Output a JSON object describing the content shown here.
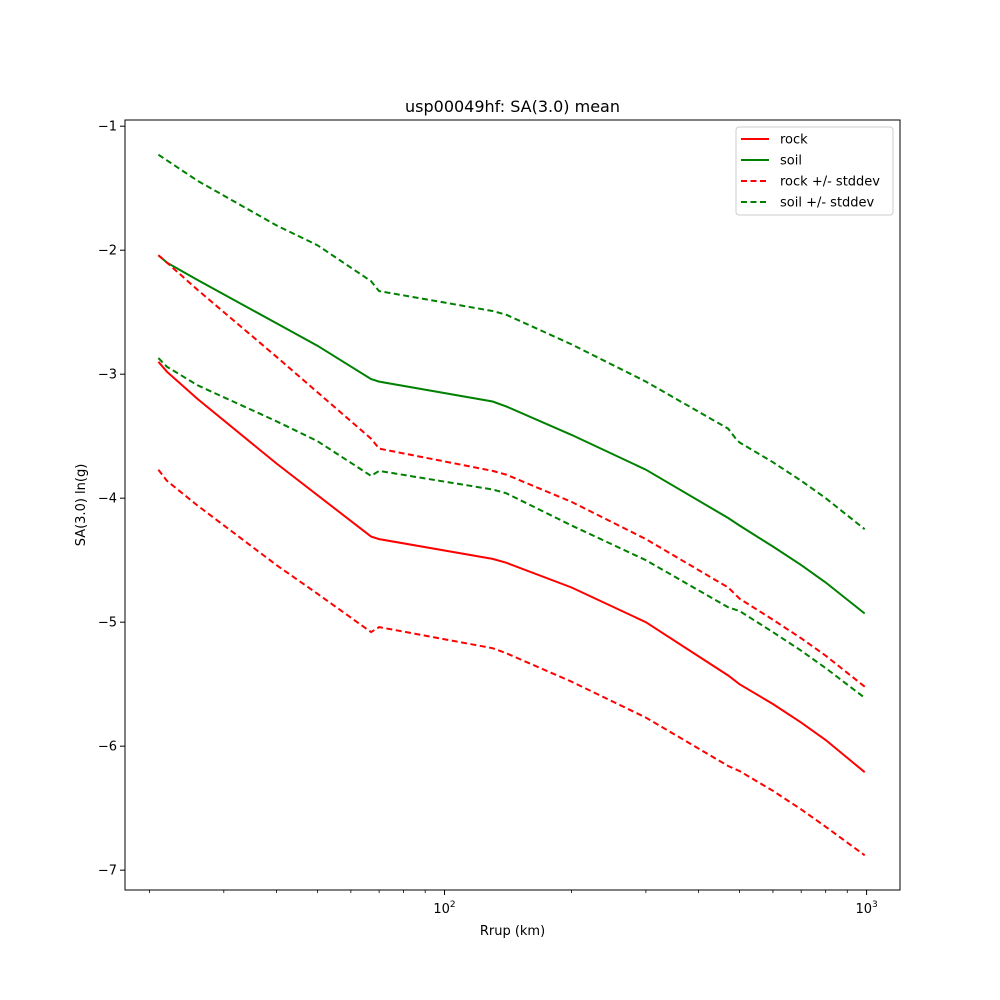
{
  "chart_data": {
    "type": "line",
    "title": "usp00049hf: SA(3.0) mean",
    "xlabel": "Rrup (km)",
    "ylabel": "SA(3.0) ln(g)",
    "xscale": "log",
    "xlim": [
      17.5,
      1200
    ],
    "ylim": [
      -7.16,
      -0.95
    ],
    "yticks": [
      -1,
      -2,
      -3,
      -4,
      -5,
      -6,
      -7
    ],
    "ytick_labels": [
      "−1",
      "−2",
      "−3",
      "−4",
      "−5",
      "−6",
      "−7"
    ],
    "xtick_major": [
      {
        "value": 100,
        "base": "10",
        "exp": "2"
      },
      {
        "value": 1000,
        "base": "10",
        "exp": "3"
      }
    ],
    "xtick_minor": [
      20,
      30,
      40,
      50,
      60,
      70,
      80,
      90,
      200,
      300,
      400,
      500,
      600,
      700,
      800,
      900
    ],
    "grid": false,
    "legend_position": "top-right",
    "series": [
      {
        "name": "rock",
        "color": "#ff0000",
        "dash": "solid",
        "x": [
          21,
          22,
          26,
          40,
          67,
          70,
          130,
          140,
          200,
          300,
          470,
          500,
          600,
          700,
          800,
          990
        ],
        "y": [
          -2.9,
          -2.98,
          -3.2,
          -3.72,
          -4.31,
          -4.33,
          -4.49,
          -4.52,
          -4.72,
          -5.0,
          -5.43,
          -5.5,
          -5.66,
          -5.81,
          -5.95,
          -6.21
        ]
      },
      {
        "name": "soil",
        "color": "#008000",
        "dash": "solid",
        "x": [
          21,
          22,
          26,
          40,
          50,
          67,
          70,
          130,
          140,
          200,
          300,
          470,
          500,
          600,
          700,
          800,
          990
        ],
        "y": [
          -2.04,
          -2.1,
          -2.24,
          -2.59,
          -2.77,
          -3.04,
          -3.06,
          -3.22,
          -3.26,
          -3.49,
          -3.77,
          -4.16,
          -4.22,
          -4.39,
          -4.54,
          -4.68,
          -4.93
        ]
      },
      {
        "name": "rock upper",
        "color": "#ff0000",
        "dash": "dashed",
        "x": [
          21,
          22,
          26,
          40,
          67,
          70,
          130,
          140,
          200,
          300,
          470,
          490,
          500,
          600,
          700,
          800,
          990
        ],
        "y": [
          -2.04,
          -2.1,
          -2.32,
          -2.86,
          -3.52,
          -3.6,
          -3.78,
          -3.81,
          -4.03,
          -4.33,
          -4.72,
          -4.78,
          -4.81,
          -4.98,
          -5.13,
          -5.27,
          -5.52
        ]
      },
      {
        "name": "rock lower",
        "color": "#ff0000",
        "dash": "dashed",
        "x": [
          21,
          22,
          26,
          40,
          50,
          67,
          70,
          130,
          140,
          200,
          300,
          470,
          500,
          600,
          700,
          800,
          990
        ],
        "y": [
          -3.77,
          -3.86,
          -4.06,
          -4.54,
          -4.77,
          -5.08,
          -5.04,
          -5.21,
          -5.25,
          -5.48,
          -5.77,
          -6.16,
          -6.2,
          -6.36,
          -6.51,
          -6.65,
          -6.88
        ]
      },
      {
        "name": "soil upper",
        "color": "#008000",
        "dash": "dashed",
        "x": [
          21,
          26,
          40,
          50,
          67,
          70,
          130,
          140,
          200,
          300,
          470,
          490,
          500,
          600,
          700,
          800,
          990
        ],
        "y": [
          -1.23,
          -1.44,
          -1.8,
          -1.96,
          -2.25,
          -2.33,
          -2.49,
          -2.52,
          -2.76,
          -3.06,
          -3.44,
          -3.52,
          -3.55,
          -3.71,
          -3.86,
          -4.0,
          -4.25
        ]
      },
      {
        "name": "soil lower",
        "color": "#008000",
        "dash": "dashed",
        "x": [
          21,
          22,
          26,
          40,
          50,
          67,
          70,
          130,
          140,
          200,
          300,
          470,
          500,
          600,
          700,
          800,
          990
        ],
        "y": [
          -2.87,
          -2.94,
          -3.09,
          -3.38,
          -3.54,
          -3.82,
          -3.78,
          -3.93,
          -3.96,
          -4.22,
          -4.5,
          -4.88,
          -4.91,
          -5.08,
          -5.23,
          -5.37,
          -5.61
        ]
      }
    ],
    "legend": [
      {
        "label": "rock",
        "color": "#ff0000",
        "dash": "solid"
      },
      {
        "label": "soil",
        "color": "#008000",
        "dash": "solid"
      },
      {
        "label": "rock +/- stddev",
        "color": "#ff0000",
        "dash": "dashed"
      },
      {
        "label": "soil +/- stddev",
        "color": "#008000",
        "dash": "dashed"
      }
    ]
  }
}
